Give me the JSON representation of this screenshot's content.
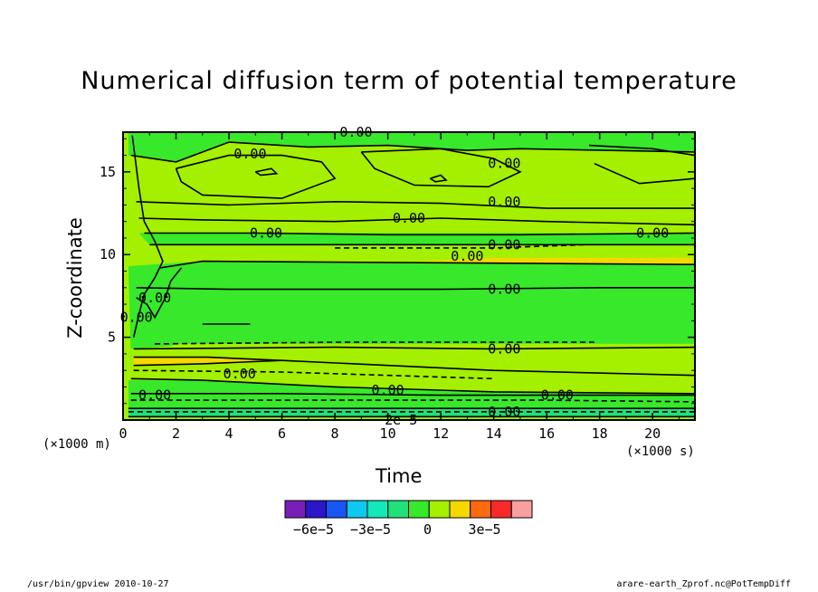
{
  "chart_data": {
    "type": "heatmap",
    "title": "Numerical diffusion term of potential temperature",
    "xlabel": "Time",
    "ylabel": "Z-coordinate",
    "x_unit": "(×1000 s)",
    "y_unit": "(×1000 m)",
    "xlim": [
      0,
      21.6
    ],
    "ylim": [
      0,
      17.4
    ],
    "x_ticks": [
      0,
      2,
      4,
      6,
      8,
      10,
      12,
      14,
      16,
      18,
      20
    ],
    "y_ticks": [
      5,
      10,
      15
    ],
    "colorbar": {
      "colors": [
        "#7a1fb5",
        "#2b16c8",
        "#1a55f5",
        "#0fc8f0",
        "#12e8b8",
        "#22e07a",
        "#38e82a",
        "#a4f000",
        "#f5d800",
        "#ff6a10",
        "#f82a2a",
        "#f8a0a0"
      ],
      "tick_labels": [
        "−6e−5",
        "−3e−5",
        "0",
        "3e−5"
      ],
      "tick_values": [
        -6e-05,
        -3e-05,
        0,
        3e-05
      ],
      "range": [
        -7.5e-05,
        5.5e-05
      ]
    },
    "bands": [
      {
        "color": "#38e82a",
        "pts": [
          [
            0.2,
            17.4
          ],
          [
            21.6,
            17.4
          ],
          [
            21.6,
            16.2
          ],
          [
            15,
            16.4
          ],
          [
            13,
            16.3
          ],
          [
            10,
            16.6
          ],
          [
            7,
            16.5
          ],
          [
            4,
            16.8
          ],
          [
            2,
            15.6
          ],
          [
            0.2,
            16.0
          ]
        ]
      },
      {
        "color": "#38e82a",
        "pts": [
          [
            2,
            15.2
          ],
          [
            4,
            16.0
          ],
          [
            6,
            16.0
          ],
          [
            7.5,
            15.6
          ],
          [
            8,
            14.6
          ],
          [
            6,
            13.4
          ],
          [
            3,
            13.6
          ],
          [
            2.2,
            14.4
          ]
        ]
      },
      {
        "color": "#38e82a",
        "pts": [
          [
            9,
            16.2
          ],
          [
            12,
            16.4
          ],
          [
            14,
            15.8
          ],
          [
            15,
            15.0
          ],
          [
            13.8,
            14.1
          ],
          [
            11,
            14.2
          ],
          [
            9.5,
            15.2
          ]
        ]
      },
      {
        "color": "#38e82a",
        "pts": [
          [
            17.6,
            16.6
          ],
          [
            20,
            16.4
          ],
          [
            21.6,
            16.0
          ],
          [
            21.6,
            14.6
          ],
          [
            19.5,
            14.3
          ],
          [
            17.8,
            15.5
          ]
        ]
      },
      {
        "color": "#a4f000",
        "pts": [
          [
            0.2,
            16.0
          ],
          [
            2,
            15.6
          ],
          [
            4,
            16.8
          ],
          [
            7,
            16.5
          ],
          [
            10,
            16.6
          ],
          [
            13,
            16.3
          ],
          [
            15,
            16.4
          ],
          [
            21.6,
            16.2
          ],
          [
            21.6,
            11.3
          ],
          [
            0.8,
            11.3
          ],
          [
            0.3,
            12.8
          ]
        ]
      },
      {
        "color": "#38e82a",
        "pts": [
          [
            0.6,
            11.3
          ],
          [
            21.6,
            11.3
          ],
          [
            21.6,
            10.6
          ],
          [
            1.0,
            10.6
          ]
        ]
      },
      {
        "color": "#a4f000",
        "pts": [
          [
            1.0,
            10.6
          ],
          [
            21.6,
            10.6
          ],
          [
            21.6,
            9.4
          ],
          [
            3,
            9.6
          ],
          [
            1.4,
            9.2
          ]
        ]
      },
      {
        "color": "#f5d800",
        "pts": [
          [
            8.8,
            9.4
          ],
          [
            14,
            9.2
          ],
          [
            21.5,
            9.3
          ],
          [
            21.5,
            9.8
          ],
          [
            14,
            9.8
          ]
        ]
      },
      {
        "color": "#38e82a",
        "pts": [
          [
            0.2,
            9.3
          ],
          [
            3,
            9.6
          ],
          [
            21.6,
            9.4
          ],
          [
            21.6,
            4.6
          ],
          [
            2,
            4.6
          ],
          [
            0.3,
            3.4
          ]
        ]
      },
      {
        "color": "#a4f000",
        "pts": [
          [
            0.3,
            4.3
          ],
          [
            3,
            4.6
          ],
          [
            21.6,
            4.6
          ],
          [
            21.6,
            1.6
          ],
          [
            14,
            1.7
          ],
          [
            8,
            2.0
          ],
          [
            3,
            2.4
          ],
          [
            0.3,
            2.5
          ]
        ]
      },
      {
        "color": "#f5d800",
        "pts": [
          [
            0.4,
            3.8
          ],
          [
            3.2,
            3.8
          ],
          [
            6,
            3.6
          ],
          [
            3,
            3.4
          ],
          [
            0.4,
            3.3
          ]
        ]
      },
      {
        "color": "#38e82a",
        "pts": [
          [
            0.2,
            2.4
          ],
          [
            3,
            2.4
          ],
          [
            8,
            2.0
          ],
          [
            14,
            1.7
          ],
          [
            21.6,
            1.6
          ],
          [
            21.6,
            0.5
          ],
          [
            0.2,
            0.5
          ]
        ]
      },
      {
        "color": "#22e07a",
        "pts": [
          [
            0.2,
            0.7
          ],
          [
            21.6,
            0.7
          ],
          [
            21.6,
            0.2
          ],
          [
            0.2,
            0.2
          ]
        ]
      },
      {
        "color": "#a4f000",
        "pts": [
          [
            0.1,
            0
          ],
          [
            21.6,
            0
          ],
          [
            21.6,
            0.2
          ],
          [
            0.1,
            0.2
          ]
        ]
      }
    ],
    "contours": [
      {
        "style": "solid",
        "pts": [
          [
            0.3,
            16.0
          ],
          [
            2,
            15.6
          ],
          [
            4,
            16.8
          ],
          [
            7,
            16.5
          ],
          [
            10,
            16.6
          ],
          [
            13,
            16.3
          ],
          [
            15,
            16.4
          ],
          [
            21.6,
            16.2
          ]
        ]
      },
      {
        "style": "solid",
        "pts": [
          [
            2,
            15.2
          ],
          [
            4,
            16.0
          ],
          [
            6,
            16.0
          ],
          [
            7.5,
            15.6
          ],
          [
            8,
            14.6
          ],
          [
            6,
            13.4
          ],
          [
            3,
            13.6
          ],
          [
            2.2,
            14.4
          ],
          [
            2,
            15.2
          ]
        ]
      },
      {
        "style": "solid",
        "pts": [
          [
            9,
            16.2
          ],
          [
            12,
            16.4
          ],
          [
            14,
            15.8
          ],
          [
            15,
            15.0
          ],
          [
            13.8,
            14.1
          ],
          [
            11,
            14.2
          ],
          [
            9.5,
            15.2
          ],
          [
            9,
            16.2
          ]
        ]
      },
      {
        "style": "solid",
        "pts": [
          [
            17.6,
            16.6
          ],
          [
            20,
            16.4
          ],
          [
            21.6,
            16.0
          ]
        ]
      },
      {
        "style": "solid",
        "pts": [
          [
            17.8,
            15.5
          ],
          [
            19.5,
            14.3
          ],
          [
            21.6,
            14.6
          ]
        ]
      },
      {
        "style": "solid",
        "pts": [
          [
            0.5,
            13.2
          ],
          [
            4,
            13.0
          ],
          [
            8,
            13.2
          ],
          [
            12,
            13.1
          ],
          [
            16,
            12.8
          ],
          [
            21.6,
            12.8
          ]
        ]
      },
      {
        "style": "solid",
        "pts": [
          [
            0.6,
            12.2
          ],
          [
            3,
            12.1
          ],
          [
            8,
            12.0
          ],
          [
            12,
            12.2
          ],
          [
            16,
            12.0
          ],
          [
            21.6,
            11.8
          ]
        ]
      },
      {
        "style": "solid",
        "pts": [
          [
            0.8,
            11.3
          ],
          [
            5,
            11.3
          ],
          [
            10,
            11.2
          ],
          [
            15,
            11.2
          ],
          [
            21.6,
            11.3
          ]
        ]
      },
      {
        "style": "solid",
        "pts": [
          [
            1.0,
            10.6
          ],
          [
            8,
            10.6
          ],
          [
            14,
            10.6
          ],
          [
            21.6,
            10.6
          ]
        ]
      },
      {
        "style": "dashed",
        "pts": [
          [
            8,
            10.4
          ],
          [
            14,
            10.4
          ],
          [
            17.5,
            10.6
          ]
        ]
      },
      {
        "style": "solid",
        "pts": [
          [
            1.4,
            9.2
          ],
          [
            3,
            9.6
          ],
          [
            21.6,
            9.4
          ]
        ]
      },
      {
        "style": "solid",
        "pts": [
          [
            0.5,
            8.0
          ],
          [
            4,
            7.9
          ],
          [
            12,
            7.9
          ],
          [
            18,
            8.0
          ],
          [
            21.6,
            8.0
          ]
        ]
      },
      {
        "style": "solid",
        "pts": [
          [
            3.0,
            5.8
          ],
          [
            4.8,
            5.8
          ]
        ]
      },
      {
        "style": "dashed",
        "pts": [
          [
            1.2,
            4.6
          ],
          [
            8,
            4.7
          ],
          [
            14,
            4.7
          ],
          [
            17.8,
            4.7
          ]
        ]
      },
      {
        "style": "solid",
        "pts": [
          [
            0.4,
            4.3
          ],
          [
            8,
            4.4
          ],
          [
            14,
            4.3
          ],
          [
            21.6,
            4.4
          ]
        ]
      },
      {
        "style": "solid",
        "pts": [
          [
            0.4,
            3.8
          ],
          [
            3.2,
            3.8
          ],
          [
            6,
            3.6
          ],
          [
            14,
            3.0
          ],
          [
            21.6,
            2.7
          ]
        ]
      },
      {
        "style": "solid",
        "pts": [
          [
            0.4,
            3.3
          ],
          [
            3,
            3.4
          ],
          [
            6,
            3.6
          ]
        ]
      },
      {
        "style": "dashed",
        "pts": [
          [
            0.4,
            3.0
          ],
          [
            6,
            2.9
          ],
          [
            12,
            2.6
          ],
          [
            14,
            2.5
          ]
        ]
      },
      {
        "style": "solid",
        "pts": [
          [
            0.3,
            2.5
          ],
          [
            3,
            2.4
          ],
          [
            8,
            2.0
          ],
          [
            14,
            1.7
          ],
          [
            21.6,
            1.6
          ]
        ]
      },
      {
        "style": "solid",
        "pts": [
          [
            0.3,
            1.6
          ],
          [
            6,
            1.6
          ],
          [
            12,
            1.5
          ],
          [
            21.6,
            1.5
          ]
        ]
      },
      {
        "style": "dashed",
        "pts": [
          [
            0.3,
            1.2
          ],
          [
            8,
            1.2
          ],
          [
            16,
            1.2
          ],
          [
            21.6,
            1.1
          ]
        ]
      },
      {
        "style": "solid",
        "pts": [
          [
            0.2,
            0.7
          ],
          [
            21.6,
            0.7
          ]
        ]
      },
      {
        "style": "dashed",
        "pts": [
          [
            0.2,
            0.5
          ],
          [
            21.6,
            0.5
          ]
        ]
      },
      {
        "style": "solid",
        "pts": [
          [
            0.2,
            0.2
          ],
          [
            21.6,
            0.2
          ]
        ]
      },
      {
        "style": "solid",
        "pts": [
          [
            0.35,
            17.2
          ],
          [
            0.6,
            14.0
          ],
          [
            0.8,
            12.0
          ],
          [
            1.2,
            10.8
          ],
          [
            1.5,
            9.6
          ],
          [
            1.2,
            8.6
          ],
          [
            0.8,
            7.6
          ],
          [
            0.6,
            6.4
          ],
          [
            0.4,
            5.0
          ]
        ]
      },
      {
        "style": "solid",
        "pts": [
          [
            0.5,
            7.4
          ],
          [
            0.9,
            7.0
          ],
          [
            1.2,
            6.2
          ],
          [
            1.6,
            7.4
          ],
          [
            1.8,
            8.4
          ],
          [
            2.2,
            9.2
          ]
        ]
      },
      {
        "style": "solid",
        "pts": [
          [
            5.0,
            15.0
          ],
          [
            5.6,
            15.2
          ],
          [
            5.8,
            14.9
          ],
          [
            5.2,
            14.8
          ],
          [
            5.0,
            15.0
          ]
        ]
      },
      {
        "style": "solid",
        "pts": [
          [
            11.6,
            14.6
          ],
          [
            12.0,
            14.8
          ],
          [
            12.2,
            14.5
          ],
          [
            11.8,
            14.4
          ],
          [
            11.6,
            14.6
          ]
        ]
      }
    ],
    "contour_labels": [
      {
        "text": "0.00",
        "x": 8.8,
        "y": 17.4
      },
      {
        "text": "0.00",
        "x": 4.8,
        "y": 16.1
      },
      {
        "text": "0.00",
        "x": 14.4,
        "y": 15.5
      },
      {
        "text": "0.00",
        "x": 14.4,
        "y": 13.2
      },
      {
        "text": "0.00",
        "x": 10.8,
        "y": 12.2
      },
      {
        "text": "0.00",
        "x": 5.4,
        "y": 11.3
      },
      {
        "text": "0.00",
        "x": 20.0,
        "y": 11.3
      },
      {
        "text": "0.00",
        "x": 14.4,
        "y": 10.6
      },
      {
        "text": "0.00",
        "x": 13.0,
        "y": 9.9
      },
      {
        "text": "0.00",
        "x": 14.4,
        "y": 7.9
      },
      {
        "text": "0.00",
        "x": 1.2,
        "y": 7.4
      },
      {
        "text": "0.00",
        "x": 0.5,
        "y": 6.2
      },
      {
        "text": "0.00",
        "x": 14.4,
        "y": 4.3
      },
      {
        "text": "0.00",
        "x": 4.4,
        "y": 2.8
      },
      {
        "text": "0.00",
        "x": 10.0,
        "y": 1.8
      },
      {
        "text": "0.00",
        "x": 1.2,
        "y": 1.5
      },
      {
        "text": "0.00",
        "x": 16.4,
        "y": 1.5
      },
      {
        "text": "0.00",
        "x": 14.4,
        "y": 0.5
      },
      {
        "text": "2e−5",
        "x": 10.5,
        "y": 0.0
      }
    ]
  },
  "footer": {
    "left": "/usr/bin/gpview   2010-10-27",
    "right": "arare-earth_Zprof.nc@PotTempDiff"
  }
}
